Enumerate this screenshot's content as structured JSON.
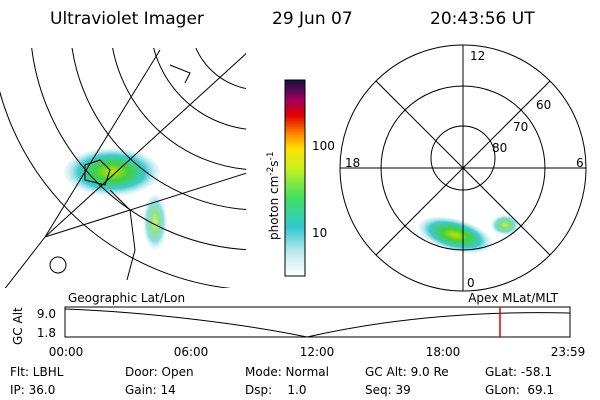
{
  "header": {
    "title": "Ultraviolet Imager",
    "date": "29 Jun 07",
    "time": "20:43:56 UT"
  },
  "colorbar": {
    "label": "photon cm",
    "exp1": "-2",
    "unit2": "s",
    "exp2": "-1",
    "ticks": [
      "100",
      "10"
    ]
  },
  "polar": {
    "mlt": [
      "12",
      "18",
      "6",
      "0"
    ],
    "mlat": [
      "60",
      "70",
      "80"
    ]
  },
  "altitude_plot": {
    "left_label": "Geographic Lat/Lon",
    "right_label": "Apex MLat/MLT",
    "y_label": "GC Alt",
    "yticks": [
      "9.0",
      "1.8"
    ],
    "xticks": [
      "00:00",
      "06:00",
      "12:00",
      "18:00",
      "23:59"
    ]
  },
  "footer": {
    "rows": [
      [
        "Flt: LBHL",
        "Door: Open",
        "Mode: Normal",
        "GC Alt: 9.0 Re",
        "GLat: -58.1"
      ],
      [
        "IP: 36.0",
        "Gain: 14",
        "Dsp:    1.0",
        "Seq: 39",
        "GLon:  69.1"
      ]
    ]
  }
}
